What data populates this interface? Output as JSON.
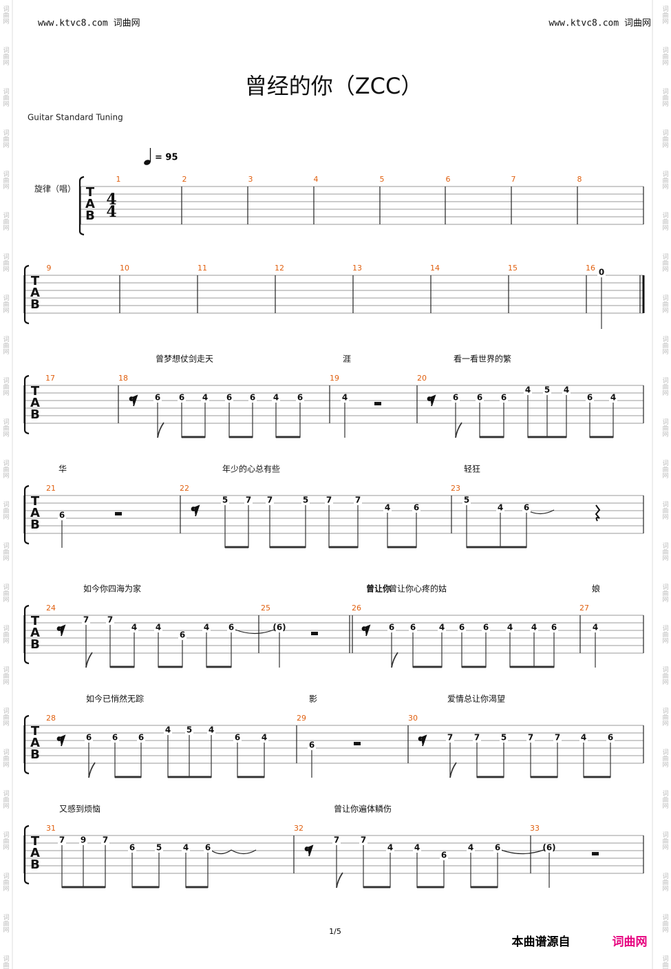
{
  "header": {
    "left": "www.ktvc8.com 词曲网",
    "right": "www.ktvc8.com 词曲网"
  },
  "watermark": "词曲网",
  "title": "曾经的你（ZCC）",
  "tuning": "Guitar Standard Tuning",
  "tempo": "= 95",
  "track": "旋律（唱）",
  "tab_clef": [
    "T",
    "A",
    "B"
  ],
  "time_signature": [
    "4",
    "4"
  ],
  "systems": [
    {
      "measures": [
        1,
        2,
        3,
        4,
        5,
        6,
        7,
        8
      ]
    },
    {
      "measures": [
        9,
        10,
        11,
        12,
        13,
        14,
        15,
        16
      ],
      "notes": [
        "0"
      ]
    },
    {
      "measures": [
        17,
        18,
        19,
        20
      ],
      "lyrics": [
        "曾梦想仗剑走天",
        "涯",
        "看一看世界的繁"
      ],
      "notes": [
        "6",
        "6",
        "4",
        "6",
        "6",
        "4",
        "6",
        "4",
        "6",
        "6",
        "6",
        "4",
        "5",
        "4",
        "6",
        "4"
      ]
    },
    {
      "measures": [
        21,
        22,
        23
      ],
      "lyrics": [
        "华",
        "年少的心总有些",
        "轻狂"
      ],
      "notes": [
        "6",
        "5",
        "7",
        "7",
        "5",
        "7",
        "7",
        "4",
        "6",
        "5",
        "4",
        "6"
      ]
    },
    {
      "measures": [
        24,
        25,
        26,
        27
      ],
      "lyrics": [
        "如今你四海为家",
        "曾让你心疼的姑",
        "娘"
      ],
      "sub_lyric": "曾让你",
      "notes": [
        "7",
        "7",
        "4",
        "4",
        "6",
        "4",
        "6",
        "(6)",
        "6",
        "6",
        "4",
        "6",
        "6",
        "4",
        "4",
        "6",
        "4"
      ]
    },
    {
      "measures": [
        28,
        29,
        30
      ],
      "lyrics": [
        "如今已悄然无踪",
        "影",
        "爱情总让你渴望"
      ],
      "notes": [
        "6",
        "6",
        "6",
        "4",
        "5",
        "4",
        "6",
        "4",
        "6",
        "7",
        "7",
        "5",
        "7",
        "7",
        "4",
        "6"
      ]
    },
    {
      "measures": [
        31,
        32,
        33
      ],
      "lyrics": [
        "又感到烦恼",
        "曾让你遍体鳞伤"
      ],
      "notes": [
        "7",
        "9",
        "7",
        "6",
        "5",
        "4",
        "6",
        "7",
        "7",
        "4",
        "4",
        "6",
        "4",
        "6",
        "(6)"
      ]
    }
  ],
  "footer": {
    "page": "1/5",
    "source": "本曲谱源自",
    "site": "词曲网"
  }
}
